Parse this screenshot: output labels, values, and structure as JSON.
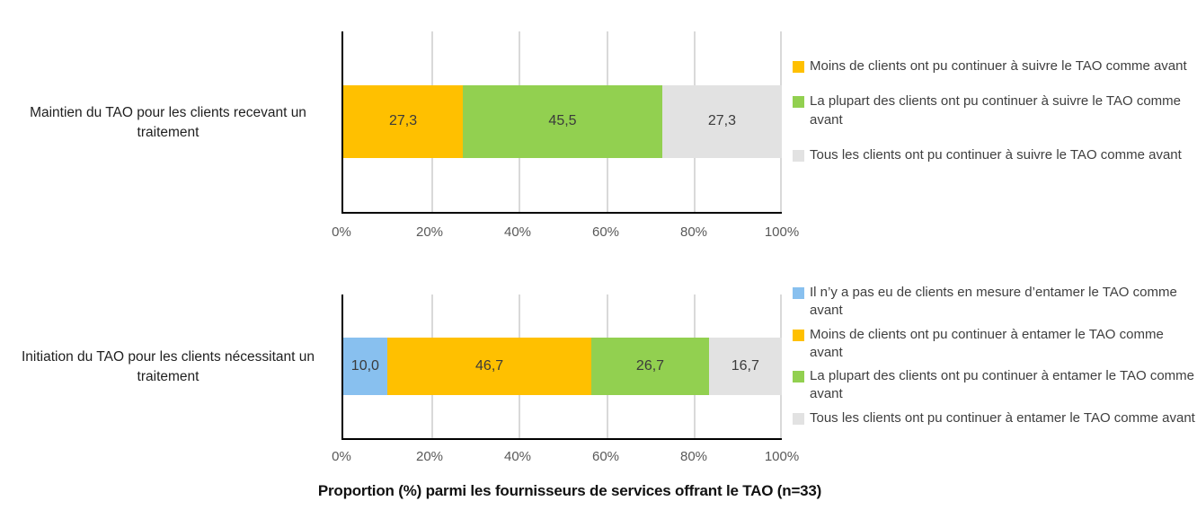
{
  "figure": {
    "caption": "Proportion (%) parmi les fournisseurs de services offrant le TAO (n=33)",
    "axis_ticks": [
      "0%",
      "20%",
      "40%",
      "60%",
      "80%",
      "100%"
    ]
  },
  "colors": {
    "yellow": "#FFC000",
    "green": "#92D050",
    "blue": "#88C0EF",
    "gray": "#E2E2E2",
    "gridline": "#D9D9D9",
    "axis_line": "#000000",
    "tick_text": "#595959",
    "label_text": "#3B3B3B"
  },
  "charts": [
    {
      "name": "maintien",
      "category_label": "Maintien du TAO pour les clients recevant un traitement",
      "segments": [
        {
          "value": 27.3,
          "label": "27,3",
          "color": "yellow"
        },
        {
          "value": 45.5,
          "label": "45,5",
          "color": "green"
        },
        {
          "value": 27.3,
          "label": "27,3",
          "color": "gray"
        }
      ],
      "legend": [
        {
          "color": "yellow",
          "text": "Moins de clients ont pu continuer à suivre le TAO comme avant"
        },
        {
          "color": "green",
          "text": "La plupart des clients ont pu continuer à suivre le TAO comme avant"
        },
        {
          "color": "gray",
          "text": "Tous les clients ont pu continuer à suivre le TAO comme avant"
        }
      ]
    },
    {
      "name": "initiation",
      "category_label": "Initiation du TAO pour les clients nécessitant un traitement",
      "segments": [
        {
          "value": 10.0,
          "label": "10,0",
          "color": "blue"
        },
        {
          "value": 46.7,
          "label": "46,7",
          "color": "yellow"
        },
        {
          "value": 26.7,
          "label": "26,7",
          "color": "green"
        },
        {
          "value": 16.7,
          "label": "16,7",
          "color": "gray"
        }
      ],
      "legend": [
        {
          "color": "blue",
          "text": "Il n’y a pas eu de clients en mesure d’entamer le TAO comme avant"
        },
        {
          "color": "yellow",
          "text": "Moins de clients ont pu continuer à entamer le TAO comme avant"
        },
        {
          "color": "green",
          "text": "La plupart des clients ont pu continuer à entamer le TAO comme avant"
        },
        {
          "color": "gray",
          "text": "Tous les clients ont pu continuer à entamer le TAO comme avant"
        }
      ]
    }
  ],
  "chart_data": [
    {
      "type": "bar",
      "orientation": "horizontal",
      "stacked": true,
      "categories": [
        "Maintien du TAO pour les clients recevant un traitement"
      ],
      "series": [
        {
          "name": "Moins de clients ont pu continuer à suivre le TAO comme avant",
          "values": [
            27.3
          ],
          "color": "#FFC000"
        },
        {
          "name": "La plupart des clients ont pu continuer à suivre le TAO comme avant",
          "values": [
            45.5
          ],
          "color": "#92D050"
        },
        {
          "name": "Tous les clients ont pu continuer à suivre le TAO comme avant",
          "values": [
            27.3
          ],
          "color": "#E2E2E2"
        }
      ],
      "data_labels": [
        [
          "27,3",
          "45,5",
          "27,3"
        ]
      ],
      "xlabel": "Proportion (%) parmi les fournisseurs de services offrant le TAO (n=33)",
      "ylabel": "",
      "xlim": [
        0,
        100
      ],
      "x_tick_labels": [
        "0%",
        "20%",
        "40%",
        "60%",
        "80%",
        "100%"
      ],
      "grid": true,
      "legend_position": "right"
    },
    {
      "type": "bar",
      "orientation": "horizontal",
      "stacked": true,
      "categories": [
        "Initiation du TAO pour les clients nécessitant un traitement"
      ],
      "series": [
        {
          "name": "Il n’y a pas eu de clients en mesure d’entamer le TAO comme avant",
          "values": [
            10.0
          ],
          "color": "#88C0EF"
        },
        {
          "name": "Moins de clients ont pu continuer à entamer le TAO comme avant",
          "values": [
            46.7
          ],
          "color": "#FFC000"
        },
        {
          "name": "La plupart des clients ont pu continuer à entamer le TAO comme avant",
          "values": [
            26.7
          ],
          "color": "#92D050"
        },
        {
          "name": "Tous les clients ont pu continuer à entamer le TAO comme avant",
          "values": [
            16.7
          ],
          "color": "#E2E2E2"
        }
      ],
      "data_labels": [
        [
          "10,0",
          "46,7",
          "26,7",
          "16,7"
        ]
      ],
      "xlabel": "Proportion (%) parmi les fournisseurs de services offrant le TAO (n=33)",
      "ylabel": "",
      "xlim": [
        0,
        100
      ],
      "x_tick_labels": [
        "0%",
        "20%",
        "40%",
        "60%",
        "80%",
        "100%"
      ],
      "grid": true,
      "legend_position": "right"
    }
  ]
}
